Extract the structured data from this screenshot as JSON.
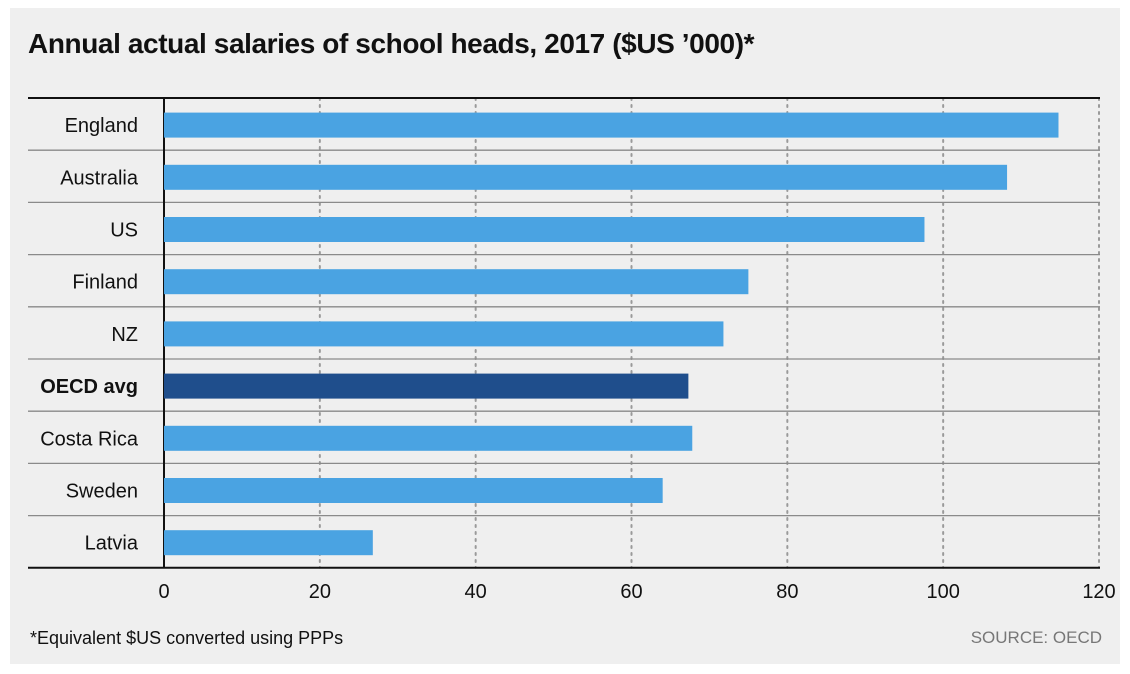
{
  "title": "Annual actual salaries of school heads, 2017 ($US ’000)*",
  "footnote": "*Equivalent $US converted using PPPs",
  "source": "SOURCE: OECD",
  "colors": {
    "bar": "#4aa3e2",
    "highlight": "#1f4e8c",
    "grid": "#9a9a9a",
    "rule": "#8a8a8a",
    "axis": "#111111"
  },
  "chart_data": {
    "type": "bar",
    "orientation": "horizontal",
    "title": "Annual actual salaries of school heads, 2017 ($US ’000)*",
    "xlabel": "",
    "ylabel": "",
    "xlim": [
      0,
      120
    ],
    "xticks": [
      0,
      20,
      40,
      60,
      80,
      100,
      120
    ],
    "grid": "vertical dotted",
    "categories": [
      "England",
      "Australia",
      "US",
      "Finland",
      "NZ",
      "OECD avg",
      "Costa Rica",
      "Sweden",
      "Latvia"
    ],
    "values": [
      114.8,
      108.2,
      97.6,
      75,
      71.8,
      67.3,
      67.8,
      64,
      26.8
    ],
    "highlight": [
      "OECD avg"
    ]
  }
}
